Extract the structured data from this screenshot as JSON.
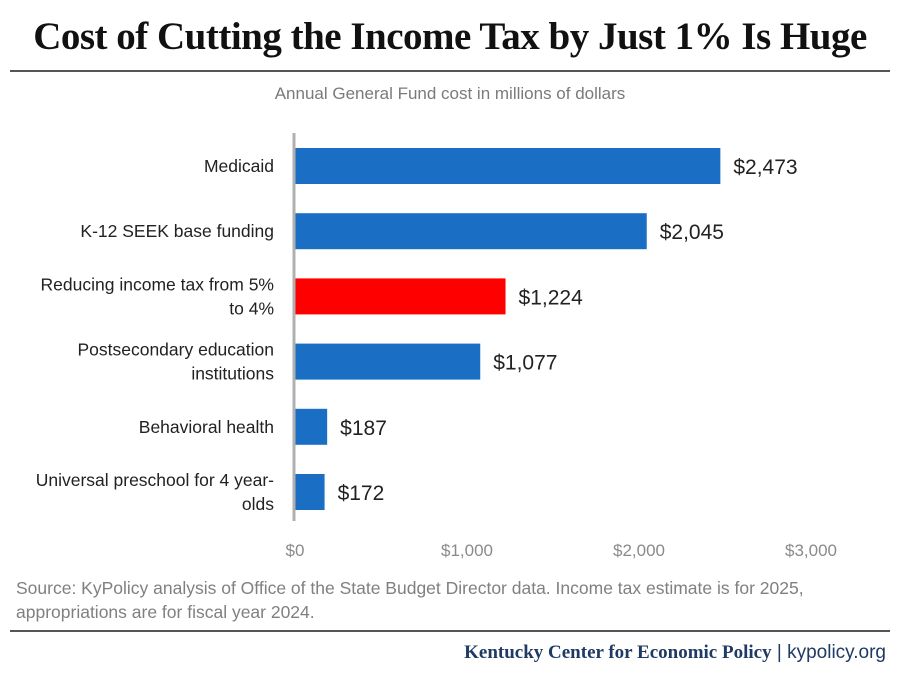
{
  "title": "Cost of Cutting the Income Tax by Just 1% Is Huge",
  "subtitle": "Annual General Fund cost in millions of dollars",
  "source": "Source: KyPolicy analysis of Office of the State Budget Director data. Income tax estimate is for 2025, appropriations are for fiscal year 2024.",
  "footer": {
    "org": "Kentucky Center for Economic Policy",
    "separator": "|",
    "site": "kypolicy.org"
  },
  "chart_data": {
    "type": "bar",
    "orientation": "horizontal",
    "categories": [
      [
        "Medicaid"
      ],
      [
        "K-12 SEEK base funding"
      ],
      [
        "Reducing income tax from 5%",
        "to 4%"
      ],
      [
        "Postsecondary education",
        "institutions"
      ],
      [
        "Behavioral health"
      ],
      [
        "Universal preschool for 4 year-",
        "olds"
      ]
    ],
    "values": [
      2473,
      2045,
      1224,
      1077,
      187,
      172
    ],
    "value_labels": [
      "$2,473",
      "$2,045",
      "$1,224",
      "$1,077",
      "$187",
      "$172"
    ],
    "bar_colors": [
      "#1a6fc4",
      "#1a6fc4",
      "#ff0000",
      "#1a6fc4",
      "#1a6fc4",
      "#1a6fc4"
    ],
    "xlim": [
      0,
      3000
    ],
    "x_ticks": [
      0,
      1000,
      2000,
      3000
    ],
    "x_tick_labels": [
      "$0",
      "$1,000",
      "$2,000",
      "$3,000"
    ],
    "grid": false
  }
}
